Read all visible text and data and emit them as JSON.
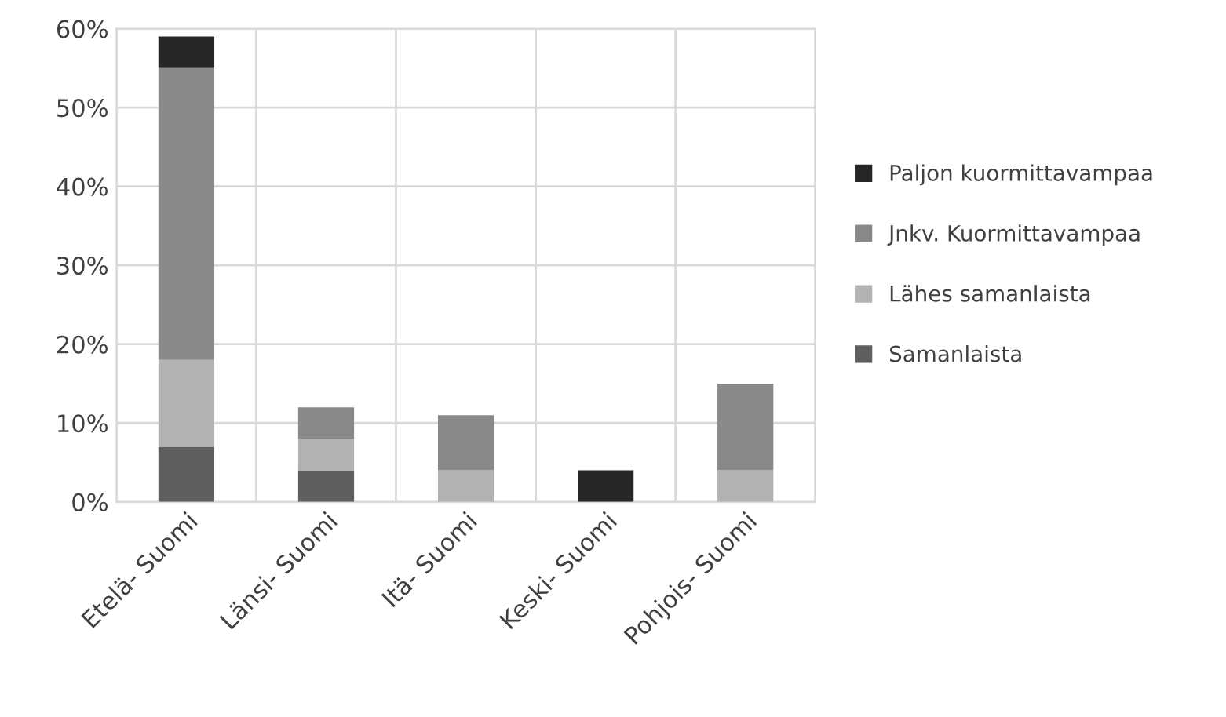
{
  "chart_data": {
    "type": "bar",
    "stacked": true,
    "categories": [
      "Etelä- Suomi",
      "Länsi- Suomi",
      "Itä- Suomi",
      "Keski- Suomi",
      "Pohjois- Suomi"
    ],
    "series": [
      {
        "name": "Samanlaista",
        "color": "#5f5f5f",
        "values": [
          7,
          4,
          0,
          0,
          0
        ]
      },
      {
        "name": "Lähes samanlaista",
        "color": "#b2b2b2",
        "values": [
          11,
          4,
          4,
          0,
          4
        ]
      },
      {
        "name": "Jnkv. Kuormittavampaa",
        "color": "#898989",
        "values": [
          37,
          4,
          7,
          0,
          11
        ]
      },
      {
        "name": "Paljon kuormittavampaa",
        "color": "#262626",
        "values": [
          4,
          0,
          0,
          4,
          0
        ]
      }
    ],
    "ylim": [
      0,
      60
    ],
    "yticks": [
      {
        "value": 0,
        "label": "0%"
      },
      {
        "value": 10,
        "label": "10%"
      },
      {
        "value": 20,
        "label": "20%"
      },
      {
        "value": 30,
        "label": "30%"
      },
      {
        "value": 40,
        "label": "40%"
      },
      {
        "value": 50,
        "label": "50%"
      },
      {
        "value": 60,
        "label": "60%"
      }
    ],
    "grid": true,
    "legend": "right"
  }
}
